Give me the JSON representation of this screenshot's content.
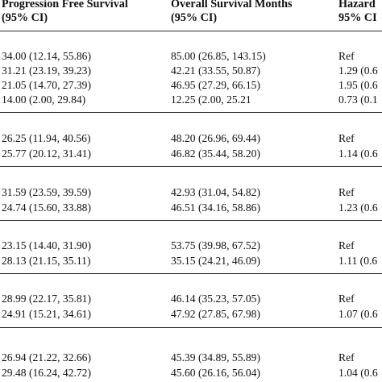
{
  "header": {
    "col1_line1": "Progression Free Survival",
    "col1_line2": "(95% CI)",
    "col2_line1": "Overall Survival Months",
    "col2_line2": "(95% CI)",
    "col3_line1": "Hazard",
    "col3_line2": "95% CI"
  },
  "groups": [
    {
      "rows": [
        {
          "pfs": "34.00 (12.14, 55.86)",
          "os": "85.00 (26.85, 143.15)",
          "hr": "Ref"
        },
        {
          "pfs": "31.21 (23.19, 39.23)",
          "os": "42.21 (33.55, 50.87)",
          "hr": "1.29 (0.6"
        },
        {
          "pfs": "21.05 (14.70, 27.39)",
          "os": "46.95 (27.29, 66.15)",
          "hr": "1.95 (0.6"
        },
        {
          "pfs": "14.00 (2.00, 29.84)",
          "os": "12.25 (2.00, 25.21",
          "hr": "0.73 (0.1"
        }
      ]
    },
    {
      "rows": [
        {
          "pfs": "26.25 (11.94, 40.56)",
          "os": "48.20 (26.96, 69.44)",
          "hr": "Ref"
        },
        {
          "pfs": "25.77 (20.12, 31.41)",
          "os": "46.82 (35.44, 58.20)",
          "hr": "1.14 (0.6"
        }
      ]
    },
    {
      "rows": [
        {
          "pfs": "31.59 (23.59, 39.59)",
          "os": "42.93 (31.04, 54.82)",
          "hr": "Ref"
        },
        {
          "pfs": "24.74 (15.60, 33.88)",
          "os": "46.51 (34.16, 58.86)",
          "hr": "1.23 (0.6"
        }
      ]
    },
    {
      "rows": [
        {
          "pfs": "23.15 (14.40, 31.90)",
          "os": "53.75 (39.98, 67.52)",
          "hr": "Ref"
        },
        {
          "pfs": "28.13 (21.15, 35.11)",
          "os": "35.15 (24.21, 46.09)",
          "hr": "1.11 (0.6"
        }
      ]
    },
    {
      "rows": [
        {
          "pfs": "28.99 (22.17, 35.81)",
          "os": "46.14 (35.23, 57.05)",
          "hr": "Ref"
        },
        {
          "pfs": "24.91 (15.21, 34.61)",
          "os": "47.92 (27.85, 67.98)",
          "hr": "1.07 (0.6"
        }
      ]
    },
    {
      "rows": [
        {
          "pfs": "26.94 (21.22, 32.66)",
          "os": "45.39 (34.89, 55.89)",
          "hr": "Ref"
        },
        {
          "pfs": "29.48 (16.24, 42.72)",
          "os": "45.60 (26.16, 56.04)",
          "hr": "1.04 (0.6"
        }
      ]
    }
  ]
}
